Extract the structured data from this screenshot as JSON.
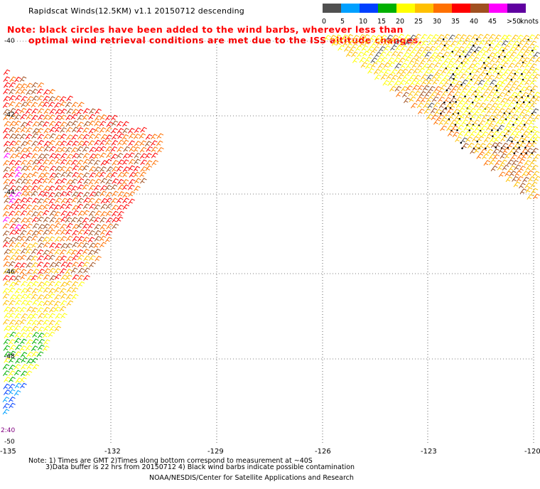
{
  "header": {
    "title": "Rapidscat Winds(12.5KM) v1.1 20150712 descending",
    "note_line1": "Note: black circles have been added to the wind barbs, wherever less than",
    "note_line2": "optimal wind retrieval conditions are met due to the ISS altitude changes."
  },
  "legend": {
    "unit": "knots",
    "bins": [
      {
        "label": "0",
        "color": "#505050"
      },
      {
        "label": "5",
        "color": "#00a0ff"
      },
      {
        "label": "10",
        "color": "#0040ff"
      },
      {
        "label": "15",
        "color": "#00b000"
      },
      {
        "label": "20",
        "color": "#ffff00"
      },
      {
        "label": "25",
        "color": "#ffc000"
      },
      {
        "label": "30",
        "color": "#ff7000"
      },
      {
        "label": "35",
        "color": "#ff0000"
      },
      {
        "label": "40",
        "color": "#a05020"
      },
      {
        "label": "45",
        "color": "#ff00ff"
      },
      {
        "label": ">50",
        "color": "#6000a0"
      }
    ]
  },
  "map": {
    "lon_labels": [
      "-135",
      "-132",
      "-129",
      "-126",
      "-123",
      "-120"
    ],
    "lat_labels": [
      "-40",
      "-42",
      "-44",
      "-46",
      "-48",
      "-50"
    ],
    "time_label": "2:40",
    "lon_range": [
      -135,
      -120
    ],
    "lat_range": [
      -50,
      -40
    ]
  },
  "footer": {
    "line1": "Note: 1) Times are GMT 2)Times along bottom correspond to measurement at ~40S",
    "line2": "3)Data buffer is 22 hrs from 20150712 4) Black wind barbs indicate possible contamination",
    "credit": "NOAA/NESDIS/Center for Satellite Applications and Research"
  }
}
